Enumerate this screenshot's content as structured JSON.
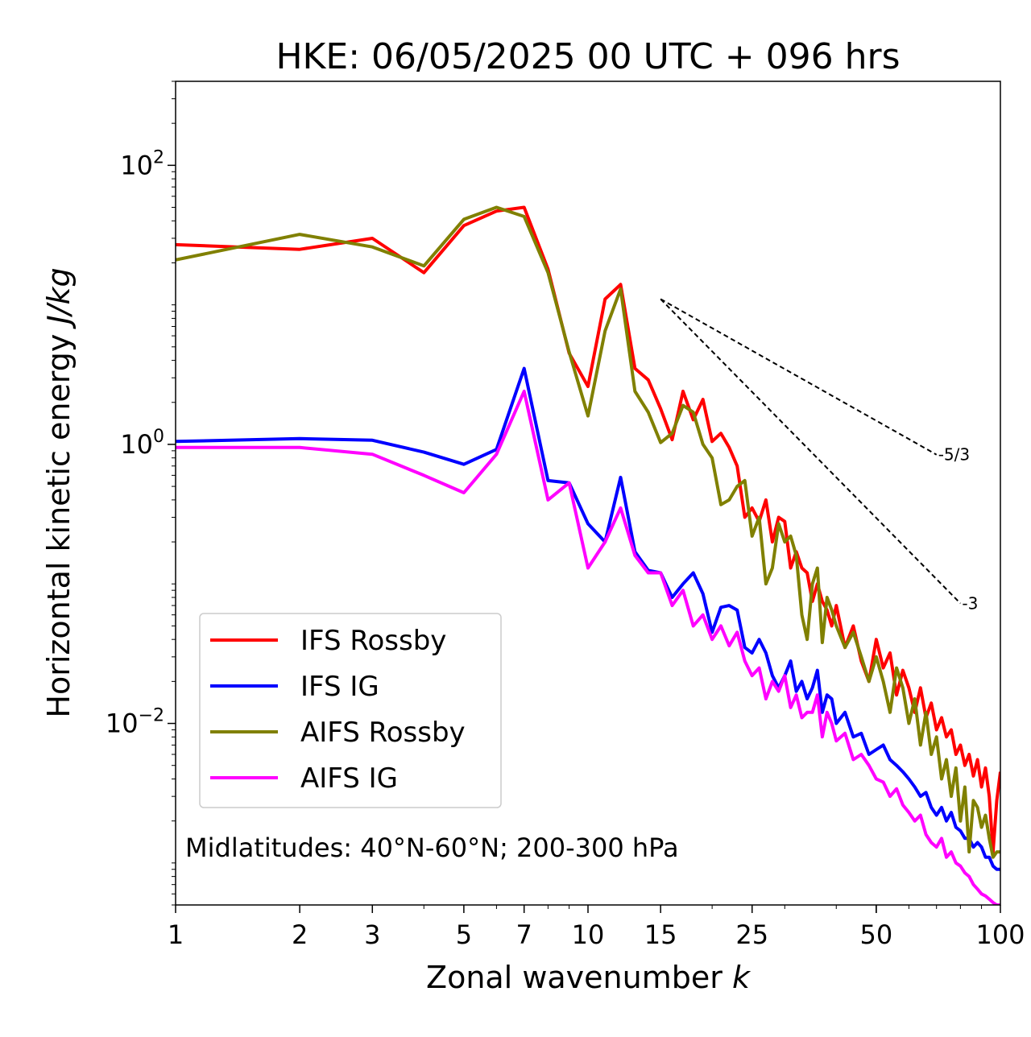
{
  "chart_data": {
    "type": "line",
    "title": "HKE: 06/05/2025 00 UTC + 096 hrs",
    "xlabel": "Zonal wavenumber",
    "xlabel_var": "k",
    "ylabel": "Horizontal kinetic energy",
    "ylabel_unit": "J/kg",
    "xscale": "log",
    "yscale": "log",
    "xlim": [
      1,
      100
    ],
    "ylim": [
      0.0005,
      400
    ],
    "x_ticks": [
      1,
      2,
      3,
      5,
      7,
      10,
      15,
      25,
      50,
      100
    ],
    "x_tick_labels": [
      "1",
      "2",
      "3",
      "5",
      "7",
      "10",
      "15",
      "25",
      "50",
      "100"
    ],
    "y_ticks": [
      {
        "value": 100,
        "base": "10",
        "exp": "2"
      },
      {
        "value": 1,
        "base": "10",
        "exp": "0"
      },
      {
        "value": 0.01,
        "base": "10",
        "exp": "−2"
      }
    ],
    "legend_position": "lower-left",
    "annotation": "Midlatitudes: 40°N-60°N; 200-300 hPa",
    "reference_slopes": [
      {
        "label": "-5/3",
        "slope": -1.6667,
        "x_start": 15,
        "y_start": 11.0,
        "x_end": 70
      },
      {
        "label": "-3",
        "slope": -3,
        "x_start": 15,
        "y_start": 11.0,
        "x_end": 80
      }
    ],
    "series": [
      {
        "name": "IFS Rossby",
        "color": "#ff0000",
        "x": [
          1,
          2,
          3,
          4,
          5,
          6,
          7,
          8,
          9,
          10,
          11,
          12,
          13,
          14,
          15,
          16,
          17,
          18,
          19,
          20,
          21,
          22,
          23,
          24,
          25,
          26,
          27,
          28,
          29,
          30,
          31,
          32,
          33,
          34,
          35,
          36,
          37,
          38,
          39,
          40,
          42,
          44,
          46,
          48,
          50,
          52,
          54,
          56,
          58,
          60,
          62,
          64,
          66,
          68,
          70,
          72,
          74,
          76,
          78,
          80,
          82,
          84,
          86,
          88,
          90,
          92,
          94,
          96,
          98,
          100
        ],
        "y": [
          27,
          25,
          30,
          17,
          37,
          47,
          50,
          18,
          4.5,
          2.6,
          11,
          14,
          3.5,
          2.9,
          1.8,
          1.08,
          2.4,
          1.5,
          2.1,
          1.05,
          1.2,
          0.95,
          0.7,
          0.3,
          0.35,
          0.28,
          0.4,
          0.2,
          0.3,
          0.28,
          0.13,
          0.17,
          0.13,
          0.12,
          0.075,
          0.1,
          0.075,
          0.065,
          0.05,
          0.07,
          0.035,
          0.05,
          0.028,
          0.02,
          0.04,
          0.025,
          0.032,
          0.016,
          0.024,
          0.018,
          0.012,
          0.018,
          0.011,
          0.014,
          0.009,
          0.011,
          0.008,
          0.009,
          0.006,
          0.007,
          0.005,
          0.006,
          0.0042,
          0.0055,
          0.0035,
          0.0048,
          0.003,
          0.0012,
          0.0028,
          0.0045
        ]
      },
      {
        "name": "IFS IG",
        "color": "#0000ff",
        "x": [
          1,
          2,
          3,
          4,
          5,
          6,
          7,
          8,
          9,
          10,
          11,
          12,
          13,
          14,
          15,
          16,
          17,
          18,
          19,
          20,
          21,
          22,
          23,
          24,
          25,
          26,
          27,
          28,
          29,
          30,
          31,
          32,
          33,
          34,
          35,
          36,
          37,
          38,
          39,
          40,
          42,
          44,
          46,
          48,
          50,
          52,
          54,
          56,
          58,
          60,
          62,
          64,
          66,
          68,
          70,
          72,
          74,
          76,
          78,
          80,
          82,
          84,
          86,
          88,
          90,
          92,
          94,
          96,
          98,
          100
        ],
        "y": [
          1.05,
          1.1,
          1.07,
          0.88,
          0.72,
          0.92,
          3.5,
          0.55,
          0.53,
          0.27,
          0.2,
          0.58,
          0.17,
          0.125,
          0.12,
          0.08,
          0.1,
          0.12,
          0.085,
          0.045,
          0.068,
          0.07,
          0.065,
          0.035,
          0.032,
          0.04,
          0.032,
          0.022,
          0.018,
          0.022,
          0.028,
          0.017,
          0.02,
          0.015,
          0.018,
          0.024,
          0.012,
          0.016,
          0.015,
          0.01,
          0.012,
          0.008,
          0.0085,
          0.006,
          0.0065,
          0.007,
          0.0055,
          0.005,
          0.0045,
          0.004,
          0.0035,
          0.003,
          0.0032,
          0.0025,
          0.0022,
          0.0025,
          0.002,
          0.0023,
          0.0018,
          0.0017,
          0.0015,
          0.0015,
          0.0013,
          0.0014,
          0.0013,
          0.0011,
          0.0011,
          0.00095,
          0.0009,
          0.0009
        ]
      },
      {
        "name": "AIFS Rossby",
        "color": "#808000",
        "x": [
          1,
          2,
          3,
          4,
          5,
          6,
          7,
          8,
          9,
          10,
          11,
          12,
          13,
          14,
          15,
          16,
          17,
          18,
          19,
          20,
          21,
          22,
          23,
          24,
          25,
          26,
          27,
          28,
          29,
          30,
          31,
          32,
          33,
          34,
          35,
          36,
          37,
          38,
          39,
          40,
          42,
          44,
          46,
          48,
          50,
          52,
          54,
          56,
          58,
          60,
          62,
          64,
          66,
          68,
          70,
          72,
          74,
          76,
          78,
          80,
          82,
          84,
          86,
          88,
          90,
          92,
          94,
          96,
          98,
          100
        ],
        "y": [
          21,
          32,
          26,
          19,
          41,
          50,
          43,
          17,
          4.6,
          1.6,
          6.5,
          13,
          2.4,
          1.7,
          1.03,
          1.2,
          1.9,
          1.7,
          1.0,
          0.8,
          0.37,
          0.4,
          0.5,
          0.55,
          0.22,
          0.3,
          0.1,
          0.13,
          0.27,
          0.2,
          0.22,
          0.16,
          0.06,
          0.04,
          0.1,
          0.13,
          0.038,
          0.08,
          0.065,
          0.05,
          0.035,
          0.045,
          0.03,
          0.02,
          0.03,
          0.02,
          0.012,
          0.025,
          0.018,
          0.01,
          0.015,
          0.007,
          0.012,
          0.006,
          0.008,
          0.004,
          0.0055,
          0.003,
          0.0048,
          0.002,
          0.0035,
          0.0012,
          0.0028,
          0.0025,
          0.0018,
          0.0022,
          0.0015,
          0.0011,
          0.0012,
          0.0012
        ]
      },
      {
        "name": "AIFS IG",
        "color": "#ff00ff",
        "x": [
          1,
          2,
          3,
          4,
          5,
          6,
          7,
          8,
          9,
          10,
          11,
          12,
          13,
          14,
          15,
          16,
          17,
          18,
          19,
          20,
          21,
          22,
          23,
          24,
          25,
          26,
          27,
          28,
          29,
          30,
          31,
          32,
          33,
          34,
          35,
          36,
          37,
          38,
          39,
          40,
          42,
          44,
          46,
          48,
          50,
          52,
          54,
          56,
          58,
          60,
          62,
          64,
          66,
          68,
          70,
          72,
          74,
          76,
          78,
          80,
          82,
          84,
          86,
          88,
          90,
          92,
          94,
          96,
          98,
          100
        ],
        "y": [
          0.95,
          0.95,
          0.85,
          0.6,
          0.45,
          0.85,
          2.4,
          0.4,
          0.53,
          0.13,
          0.2,
          0.35,
          0.16,
          0.12,
          0.12,
          0.07,
          0.09,
          0.05,
          0.06,
          0.04,
          0.05,
          0.036,
          0.045,
          0.028,
          0.022,
          0.025,
          0.015,
          0.02,
          0.017,
          0.022,
          0.013,
          0.016,
          0.011,
          0.012,
          0.012,
          0.016,
          0.008,
          0.012,
          0.01,
          0.0075,
          0.0085,
          0.0055,
          0.006,
          0.005,
          0.004,
          0.0038,
          0.003,
          0.0034,
          0.0026,
          0.0023,
          0.002,
          0.0022,
          0.0016,
          0.0014,
          0.0013,
          0.0015,
          0.0011,
          0.0012,
          0.001,
          0.00095,
          0.00085,
          0.0008,
          0.0007,
          0.00065,
          0.0006,
          0.00058,
          0.00055,
          0.00052,
          0.0005,
          0.0005
        ]
      }
    ]
  }
}
